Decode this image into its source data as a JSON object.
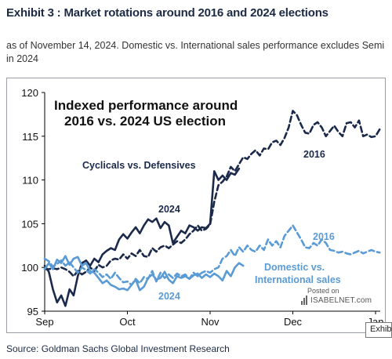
{
  "header": {
    "title": "Exhibit 3 : Market rotations around 2016 and 2024 elections",
    "subtitle_line1": "as of November 14, 2024. Domestic vs. International sales performance excludes Semi",
    "subtitle_line2": "in 2024"
  },
  "footer": {
    "source": "Source: Goldman Sachs Global Investment Research",
    "corner_tab": "Exhibi"
  },
  "watermark": {
    "posted": "Posted on",
    "brand": "ISABELNET.com"
  },
  "colors": {
    "dark_navy": "#1b2a4a",
    "light_blue": "#5b9bd5",
    "axis": "#000000"
  },
  "chart_data": {
    "type": "line",
    "title": "Indexed performance around 2016 vs. 2024 US election",
    "title_lines": [
      "Indexed performance around",
      "2016 vs. 2024 US election"
    ],
    "xlabel": "",
    "ylabel": "",
    "x_ticks": [
      "Sep",
      "Oct",
      "Nov",
      "Dec",
      "Jan"
    ],
    "xlim": [
      0,
      4
    ],
    "ylim": [
      95,
      120
    ],
    "y_ticks": [
      95,
      100,
      105,
      110,
      115,
      120
    ],
    "grid": false,
    "annotations": {
      "cyclicals": "Cyclicals  vs. Defensives",
      "cyc_2016": "2016",
      "cyc_2024": "2024",
      "dom_2016": "2016",
      "domestic_l1": "Domestic vs.",
      "domestic_l2": "International sales",
      "dom_2024": "2024"
    },
    "series": [
      {
        "name": "Cyclicals vs. Defensives 2024",
        "color": "#1b2a4a",
        "dash": false,
        "x": [
          0.0,
          0.05,
          0.1,
          0.15,
          0.2,
          0.25,
          0.3,
          0.35,
          0.4,
          0.45,
          0.5,
          0.55,
          0.6,
          0.65,
          0.7,
          0.75,
          0.8,
          0.85,
          0.9,
          0.95,
          1.0,
          1.05,
          1.1,
          1.15,
          1.2,
          1.25,
          1.3,
          1.35,
          1.4,
          1.45,
          1.5,
          1.55,
          1.6,
          1.65,
          1.7,
          1.75,
          1.8,
          1.85,
          1.9,
          1.95,
          2.0,
          2.05,
          2.1,
          2.15,
          2.2,
          2.25,
          2.3,
          2.35
        ],
        "y": [
          100.2,
          99.5,
          97.5,
          96.0,
          96.8,
          95.6,
          97.5,
          96.8,
          99.0,
          100.5,
          100.8,
          100.2,
          101.0,
          100.6,
          101.5,
          101.9,
          102.2,
          102.0,
          103.2,
          103.8,
          103.3,
          104.0,
          104.6,
          103.9,
          104.8,
          105.5,
          105.2,
          105.6,
          104.5,
          105.2,
          104.8,
          102.8,
          103.5,
          104.2,
          103.9,
          104.8,
          104.6,
          104.2,
          104.6,
          104.5,
          105.0,
          111.0,
          110.0,
          110.5,
          110.0,
          110.8,
          110.6,
          111.3
        ]
      },
      {
        "name": "Cyclicals vs. Defensives 2016",
        "color": "#1b2a4a",
        "dash": true,
        "x": [
          0.0,
          0.05,
          0.1,
          0.15,
          0.2,
          0.25,
          0.3,
          0.35,
          0.4,
          0.45,
          0.5,
          0.55,
          0.6,
          0.65,
          0.7,
          0.75,
          0.8,
          0.85,
          0.9,
          0.95,
          1.0,
          1.05,
          1.1,
          1.15,
          1.2,
          1.25,
          1.3,
          1.35,
          1.4,
          1.45,
          1.5,
          1.55,
          1.6,
          1.65,
          1.7,
          1.75,
          1.8,
          1.85,
          1.9,
          1.95,
          2.0,
          2.05,
          2.1,
          2.15,
          2.2,
          2.25,
          2.3,
          2.35,
          2.4,
          2.45,
          2.5,
          2.55,
          2.6,
          2.65,
          2.7,
          2.75,
          2.8,
          2.85,
          2.9,
          2.95,
          3.0,
          3.05,
          3.1,
          3.15,
          3.2,
          3.25,
          3.3,
          3.35,
          3.4,
          3.45,
          3.5,
          3.55,
          3.6,
          3.65,
          3.7,
          3.75,
          3.8,
          3.85,
          3.9,
          3.95,
          4.0,
          4.05
        ],
        "y": [
          99.8,
          99.8,
          99.9,
          99.8,
          100.0,
          99.8,
          99.5,
          99.0,
          99.6,
          99.2,
          99.5,
          100.0,
          99.6,
          100.3,
          100.0,
          100.2,
          100.8,
          101.0,
          100.9,
          101.5,
          101.0,
          101.6,
          101.3,
          102.0,
          101.3,
          101.2,
          102.2,
          101.8,
          102.3,
          102.5,
          102.2,
          102.6,
          103.0,
          102.8,
          103.2,
          103.8,
          104.2,
          104.8,
          104.2,
          104.4,
          104.9,
          107.5,
          109.4,
          109.8,
          110.4,
          111.5,
          111.0,
          111.8,
          112.6,
          112.4,
          113.0,
          113.4,
          112.8,
          113.6,
          113.5,
          114.3,
          114.5,
          114.0,
          114.8,
          116.0,
          117.9,
          117.4,
          116.3,
          115.4,
          115.3,
          116.3,
          116.6,
          116.0,
          115.0,
          115.6,
          116.2,
          115.5,
          115.0,
          116.5,
          116.6,
          116.0,
          116.8,
          115.0,
          115.2,
          114.9,
          115.0,
          115.8
        ]
      },
      {
        "name": "Domestic vs. International sales 2024",
        "color": "#5b9bd5",
        "dash": false,
        "x": [
          0.0,
          0.05,
          0.1,
          0.15,
          0.2,
          0.25,
          0.3,
          0.35,
          0.4,
          0.45,
          0.5,
          0.55,
          0.6,
          0.65,
          0.7,
          0.75,
          0.8,
          0.85,
          0.9,
          0.95,
          1.0,
          1.05,
          1.1,
          1.15,
          1.2,
          1.25,
          1.3,
          1.35,
          1.4,
          1.45,
          1.5,
          1.55,
          1.6,
          1.65,
          1.7,
          1.75,
          1.8,
          1.85,
          1.9,
          1.95,
          2.0,
          2.05,
          2.1,
          2.15,
          2.2,
          2.25,
          2.3,
          2.35,
          2.4
        ],
        "y": [
          99.8,
          100.5,
          99.8,
          100.9,
          100.5,
          101.3,
          100.3,
          101.0,
          101.2,
          100.2,
          100.5,
          99.6,
          99.4,
          98.8,
          98.2,
          98.5,
          98.0,
          97.8,
          97.5,
          97.6,
          97.4,
          98.0,
          98.6,
          97.4,
          97.8,
          98.8,
          99.2,
          98.6,
          98.8,
          99.5,
          98.6,
          98.2,
          99.0,
          98.8,
          99.0,
          98.7,
          99.1,
          99.3,
          98.8,
          99.2,
          98.9,
          99.3,
          99.0,
          98.5,
          99.6,
          99.0,
          100.0,
          100.5,
          100.2
        ]
      },
      {
        "name": "Domestic vs. International sales 2016",
        "color": "#5b9bd5",
        "dash": true,
        "x": [
          0.0,
          0.05,
          0.1,
          0.15,
          0.2,
          0.25,
          0.3,
          0.35,
          0.4,
          0.45,
          0.5,
          0.55,
          0.6,
          0.65,
          0.7,
          0.75,
          0.8,
          0.85,
          0.9,
          0.95,
          1.0,
          1.05,
          1.1,
          1.15,
          1.2,
          1.25,
          1.3,
          1.35,
          1.4,
          1.45,
          1.5,
          1.55,
          1.6,
          1.65,
          1.7,
          1.75,
          1.8,
          1.85,
          1.9,
          1.95,
          2.0,
          2.05,
          2.1,
          2.15,
          2.2,
          2.25,
          2.3,
          2.35,
          2.4,
          2.45,
          2.5,
          2.55,
          2.6,
          2.65,
          2.7,
          2.75,
          2.8,
          2.85,
          2.9,
          2.95,
          3.0,
          3.05,
          3.1,
          3.15,
          3.2,
          3.25,
          3.3,
          3.35,
          3.4,
          3.45,
          3.5,
          3.55,
          3.6,
          3.65,
          3.7,
          3.75,
          3.8,
          3.85,
          3.9,
          3.95,
          4.0,
          4.05
        ],
        "y": [
          101.0,
          100.7,
          100.1,
          100.4,
          100.8,
          100.2,
          100.6,
          100.0,
          99.4,
          100.0,
          99.7,
          99.3,
          99.8,
          99.4,
          98.9,
          99.2,
          98.7,
          99.4,
          98.8,
          98.3,
          98.4,
          98.0,
          98.7,
          98.2,
          98.9,
          98.7,
          99.6,
          98.4,
          99.4,
          98.8,
          99.2,
          98.8,
          99.3,
          99.0,
          99.2,
          98.7,
          99.4,
          99.0,
          99.4,
          99.6,
          99.4,
          99.8,
          100.0,
          101.0,
          101.3,
          102.0,
          101.3,
          102.3,
          101.8,
          102.5,
          102.0,
          101.8,
          102.5,
          102.0,
          103.2,
          102.5,
          103.0,
          102.3,
          103.6,
          104.2,
          104.8,
          104.0,
          103.2,
          102.3,
          102.2,
          102.8,
          102.5,
          103.2,
          102.8,
          102.0,
          101.9,
          101.7,
          101.8,
          101.6,
          101.5,
          101.7,
          101.9,
          101.6,
          101.8,
          102.0,
          101.8,
          101.7
        ]
      }
    ]
  }
}
